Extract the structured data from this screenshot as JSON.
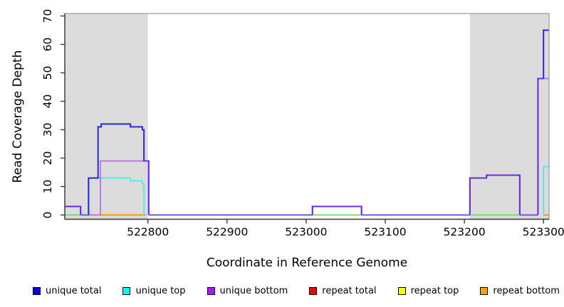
{
  "chart_data": {
    "type": "line",
    "subtype": "step-coverage-plot",
    "title": "",
    "xlabel": "Coordinate in Reference Genome",
    "ylabel": "Read Coverage Depth",
    "xlim": [
      522695,
      523307
    ],
    "ylim": [
      0,
      70
    ],
    "x_ticks": [
      522800,
      522900,
      523000,
      523100,
      523200,
      523300
    ],
    "y_ticks": [
      0,
      10,
      20,
      30,
      40,
      50,
      60,
      70
    ],
    "grid": false,
    "legend_position": "bottom",
    "region_color": "#DCDCDC",
    "shaded_regions": [
      [
        522695,
        522800
      ],
      [
        523207,
        523307
      ]
    ],
    "series": [
      {
        "name": "unique total",
        "legend_color": "#0000EE",
        "line_color": "#2B24DD",
        "line_opacity": 1,
        "segments": [
          [
            522695,
            522715,
            3
          ],
          [
            522725,
            522737,
            13
          ],
          [
            522737,
            522741,
            31
          ],
          [
            522741,
            522778,
            32
          ],
          [
            522778,
            522793,
            31
          ],
          [
            522793,
            522795,
            30
          ],
          [
            522795,
            522801,
            19
          ],
          [
            523008,
            523070,
            3
          ],
          [
            523207,
            523228,
            13
          ],
          [
            523228,
            523270,
            14
          ],
          [
            523293,
            523300,
            48
          ],
          [
            523300,
            523307,
            65
          ]
        ]
      },
      {
        "name": "unique top",
        "legend_color": "#00FFFF",
        "line_color": "#5CE9E9",
        "line_opacity": 1,
        "segments": [
          [
            522725,
            522778,
            13
          ],
          [
            522778,
            522793,
            12
          ],
          [
            522793,
            522795,
            11
          ],
          [
            523300,
            523307,
            17
          ]
        ]
      },
      {
        "name": "unique bottom",
        "legend_color": "#A020F0",
        "line_color": "#A032DC",
        "line_opacity": 0.55,
        "segments": [
          [
            522695,
            522715,
            3
          ],
          [
            522725,
            522740,
            0
          ],
          [
            522740,
            522801,
            19
          ],
          [
            523008,
            523070,
            3
          ],
          [
            523207,
            523228,
            13
          ],
          [
            523228,
            523270,
            14
          ],
          [
            523293,
            523307,
            48
          ]
        ]
      },
      {
        "name": "repeat total",
        "legend_color": "#EE0000",
        "line_color": "#EE0000",
        "line_opacity": 1,
        "segments": []
      },
      {
        "name": "repeat top",
        "legend_color": "#FFFF00",
        "line_color": "#FFFF00",
        "line_opacity": 1,
        "segments": []
      },
      {
        "name": "repeat bottom",
        "legend_color": "#FFA500",
        "line_color": "#FF9800",
        "line_opacity": 1,
        "segments": [
          [
            522740,
            522797,
            0
          ],
          [
            523300,
            523307,
            0
          ]
        ]
      }
    ],
    "baseline_overlaps": [
      {
        "color": "#7ED87E",
        "note": "unique top over repeat top at depth 0",
        "segments": [
          [
            522695,
            522727
          ],
          [
            523008,
            523070
          ],
          [
            523207,
            523293
          ]
        ]
      },
      {
        "color": "#6A5CE0",
        "note": "unique total over unique bottom at depth 0",
        "segments": [
          [
            522715,
            522725
          ],
          [
            522801,
            523008
          ],
          [
            523070,
            523207
          ],
          [
            523270,
            523293
          ]
        ]
      }
    ]
  }
}
